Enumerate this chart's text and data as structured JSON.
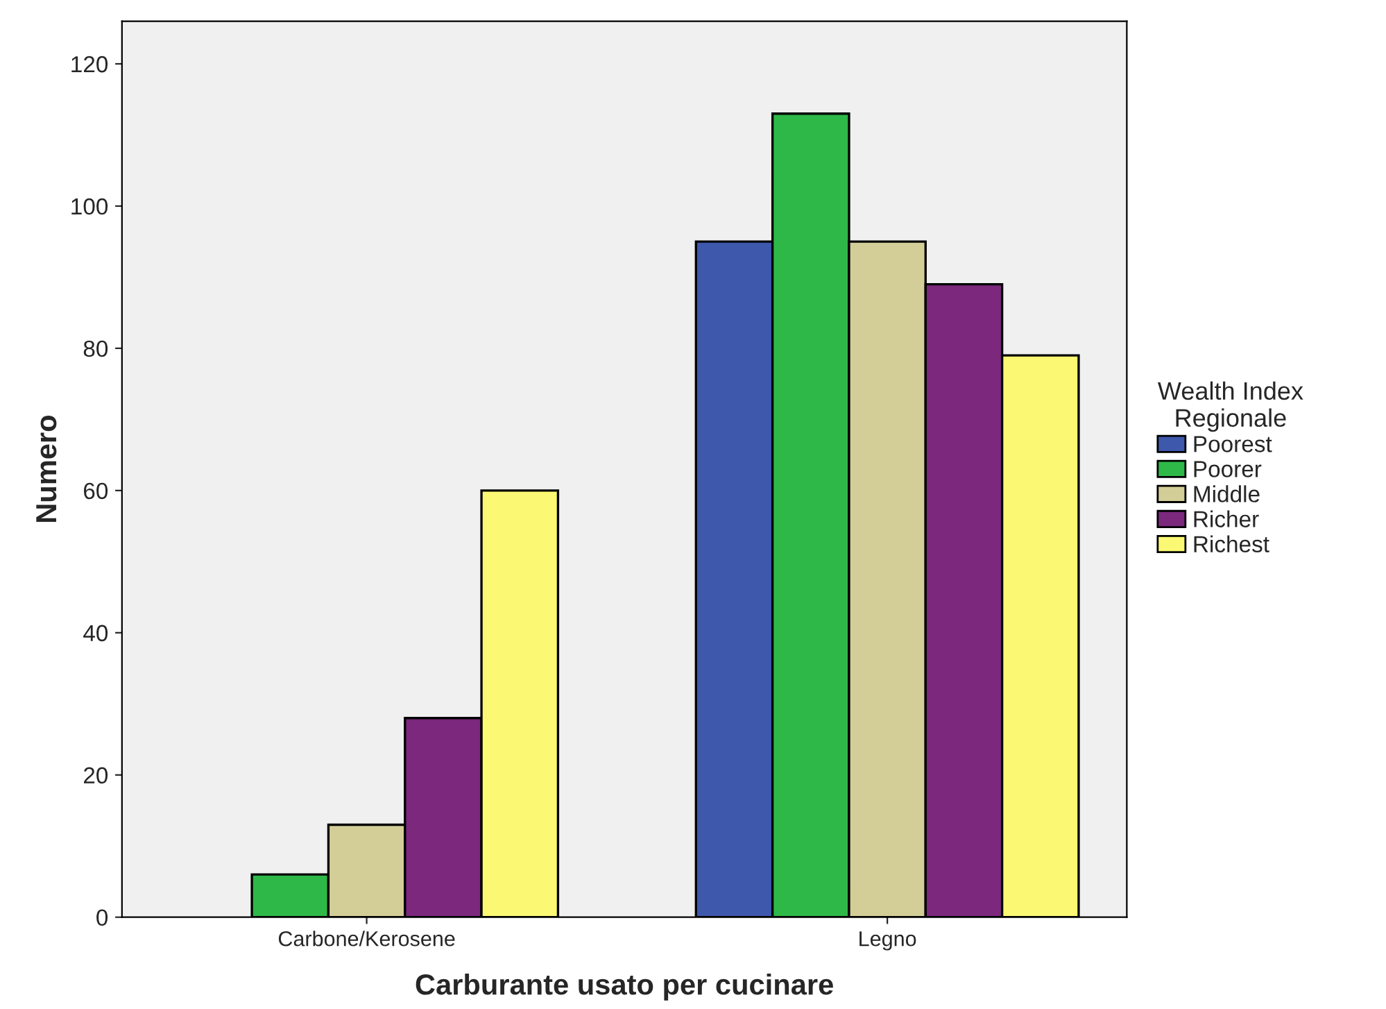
{
  "chart_data": {
    "type": "bar",
    "xlabel": "Carburante usato per cucinare",
    "ylabel": "Numero",
    "legend_title": "Wealth Index\nRegionale",
    "categories": [
      "Carbone/Kerosene",
      "Legno"
    ],
    "series": [
      {
        "name": "Poorest",
        "color": "#3e58ac",
        "values": [
          null,
          95
        ]
      },
      {
        "name": "Poorer",
        "color": "#2eb848",
        "values": [
          6,
          113
        ]
      },
      {
        "name": "Middle",
        "color": "#d3ce97",
        "values": [
          13,
          95
        ]
      },
      {
        "name": "Richer",
        "color": "#7b287d",
        "values": [
          28,
          89
        ]
      },
      {
        "name": "Richest",
        "color": "#fbf873",
        "values": [
          60,
          79
        ]
      }
    ],
    "ylim": [
      0,
      126
    ],
    "yticks": [
      0,
      20,
      40,
      60,
      80,
      100,
      120
    ],
    "grid": false,
    "legend": "right"
  }
}
